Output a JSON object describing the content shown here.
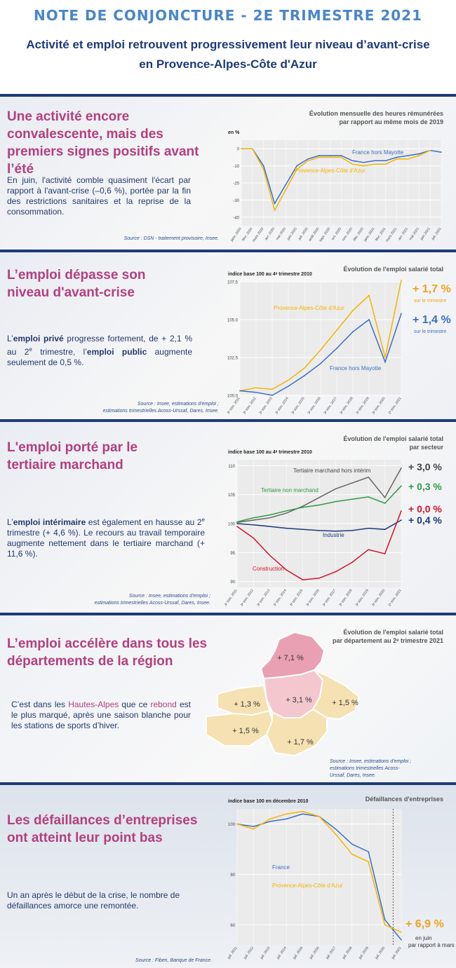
{
  "header": {
    "title": "NOTE DE CONJONCTURE - 2E TRIMESTRE 2021",
    "subtitle_line1": "Activité et emploi retrouvent progressivement leur niveau d’avant-crise",
    "subtitle_line2": "en Provence-Alpes-Côte d'Azur"
  },
  "section1": {
    "title": "Une activité encore convalescente, mais des premiers signes positifs avant l’été",
    "text": "En juin, l'activité comble quasiment l'écart par rapport à l'avant-crise (–0,6 %), portée par la fin des restrictions sanitaires et la reprise de la consommation.",
    "source": "Source : DSN - traitement provisoire, Insee.",
    "chart_title_1": "Évolution mensuelle des heures rémunérées",
    "chart_title_2": "par rapport au même mois de 2019",
    "unit": "en %"
  },
  "section2": {
    "title": "L’emploi dépasse son niveau d'avant-crise",
    "text_a": "L’",
    "text_b": "emploi privé",
    "text_c": " progresse fortement, de + 2,1 % au 2",
    "text_sup": "e",
    "text_d": " trimestre, l’",
    "text_e": "emploi public",
    "text_f": " augmente seulement de 0,5 %.",
    "source_1": "Source : Insee, estimations d'emploi ;",
    "source_2": "estimations trimestrielles Acoss-Urssaf, Dares, Insee.",
    "chart_title": "Évolution de l'emploi salarié total",
    "unit": "indice base 100 au 4ᵉ trimestre 2010",
    "delta_paca": "+ 1,7 %",
    "delta_france": "+ 1,4 %",
    "delta_sub": "sur le trimestre"
  },
  "section3": {
    "title": "L'emploi porté par le tertiaire marchand",
    "text_a": "L’",
    "text_b": "emploi intérimaire",
    "text_c": " est également en hausse au 2",
    "text_sup": "e",
    "text_d": " trimestre (+ 4,6 %). Le recours au travail temporaire augmente nettement dans le tertiaire marchand (+ 11,6 %).",
    "source_1": "Source : Insee, estimations d'emploi ;",
    "source_2": "estimations trimestrielles Acoss-Urssaf, Dares, Insee.",
    "chart_title_1": "Évolution de l'emploi salarié total",
    "chart_title_2": "par secteur",
    "unit": "indice base 100 au 4ᵉ trimestre 2010",
    "deltas": [
      "+ 3,0 %",
      "+ 0,3 %",
      "+ 0,0 %",
      "+ 0,4 %"
    ]
  },
  "section4": {
    "title": "L’emploi accélère dans tous les départements de la région",
    "text_a": "C’est dans les ",
    "text_b": "Hautes-Alpes",
    "text_c": " que ce ",
    "text_d": "rebond",
    "text_e": " est le plus marqué, après une saison blanche pour les stations de sports d’hiver.",
    "chart_title_1": "Évolution de l'emploi salarié total",
    "chart_title_2": "par département au 2ᵉ trimestre 2021",
    "map_labels": [
      "+ 7,1 %",
      "+ 3,1 %",
      "+ 1,3 %",
      "+ 1,5 %",
      "+ 1,5 %",
      "+ 1,7 %"
    ],
    "source_1": "Source : Insee, estimations d'emploi ;",
    "source_2": "estimations trimestrielles Acoss-",
    "source_3": "Urssaf, Dares, Insee."
  },
  "section5": {
    "title": "Les défaillances d’entreprises ont atteint leur point bas",
    "text": "Un an après le début de la crise, le nombre de défaillances amorce une remontée.",
    "source": "Source : Fiben, Banque de France.",
    "chart_title": "Défaillances d'entreprises",
    "unit": "indice base 100 en décembre 2010",
    "delta": "+ 6,9 %",
    "delta_sub_1": "en juin",
    "delta_sub_2": "par rapport à mars"
  },
  "chart_data": [
    {
      "type": "line",
      "title": "Évolution mensuelle des heures rémunérées par rapport au même mois de 2019",
      "ylabel": "en %",
      "x": [
        "janv. 2020",
        "févr. 2020",
        "mars 2020",
        "avr. 2020",
        "mai 2020",
        "juin 2020",
        "juil. 2020",
        "août 2020",
        "sept. 2020",
        "oct. 2020",
        "nov. 2020",
        "déc. 2020",
        "janv. 2021",
        "févr. 2021",
        "mars 2021",
        "avr. 2021",
        "mai 2021",
        "juin 2021",
        "juil. 2021"
      ],
      "ylim": [
        -45,
        5
      ],
      "yticks": [
        0,
        -10,
        -20,
        -30,
        -40
      ],
      "series": [
        {
          "name": "France hors Mayotte",
          "color": "#3a6fc4",
          "values": [
            0,
            0,
            -10,
            -32,
            -21,
            -10,
            -6,
            -4,
            -4,
            -4,
            -7,
            -8,
            -7,
            -7,
            -5,
            -4,
            -3,
            -1,
            -2
          ]
        },
        {
          "name": "Provence-Alpes-Côte d'Azur",
          "color": "#f2b500",
          "values": [
            0,
            0,
            -12,
            -36,
            -24,
            -12,
            -7,
            -5,
            -5,
            -5,
            -9,
            -10,
            -9,
            -9,
            -6,
            -6,
            -4,
            -1,
            null
          ]
        }
      ]
    },
    {
      "type": "line",
      "title": "Évolution de l'emploi salarié total",
      "ylabel": "indice base 100 au 4ᵉ trimestre 2010",
      "x": [
        "3ᵉ trim. 2011",
        "3ᵉ trim. 2012",
        "3ᵉ trim. 2013",
        "3ᵉ trim. 2014",
        "3ᵉ trim. 2015",
        "3ᵉ trim. 2016",
        "3ᵉ trim. 2017",
        "3ᵉ trim. 2018",
        "3ᵉ trim. 2019",
        "3ᵉ trim. 2020",
        "2ᵉ trim. 2021"
      ],
      "ylim": [
        100,
        107.5
      ],
      "yticks": [
        100.0,
        102.5,
        105.0,
        107.5
      ],
      "series": [
        {
          "name": "Provence-Alpes-Côte d'Azur",
          "color": "#f2b500",
          "values": [
            100.3,
            100.5,
            100.4,
            101.0,
            101.8,
            103.0,
            104.3,
            105.6,
            106.6,
            102.5,
            107.6
          ]
        },
        {
          "name": "France hors Mayotte",
          "color": "#3a6fc4",
          "values": [
            100.3,
            100.2,
            100.0,
            100.6,
            101.3,
            102.1,
            103.1,
            104.2,
            105.0,
            102.2,
            105.4
          ]
        }
      ]
    },
    {
      "type": "line",
      "title": "Évolution de l'emploi salarié total par secteur",
      "ylabel": "indice base 100 au 4ᵉ trimestre 2010",
      "x": [
        "3ᵉ trim. 2011",
        "3ᵉ trim. 2012",
        "3ᵉ trim. 2013",
        "3ᵉ trim. 2014",
        "3ᵉ trim. 2015",
        "3ᵉ trim. 2016",
        "3ᵉ trim. 2017",
        "3ᵉ trim. 2018",
        "3ᵉ trim. 2019",
        "3ᵉ trim. 2020",
        "2ᵉ trim. 2021"
      ],
      "ylim": [
        89,
        111
      ],
      "yticks": [
        90,
        95,
        100,
        105,
        110
      ],
      "series": [
        {
          "name": "Tertiaire marchand hors intérim",
          "color": "#666666",
          "values": [
            100.2,
            100.6,
            101.0,
            101.8,
            103.0,
            104.5,
            106.0,
            107.0,
            108.0,
            104.5,
            109.6
          ]
        },
        {
          "name": "Tertiaire non marchand",
          "color": "#2f9a4a",
          "values": [
            100.3,
            101.0,
            101.5,
            102.2,
            102.8,
            103.2,
            103.8,
            104.2,
            104.6,
            103.5,
            106.5
          ]
        },
        {
          "name": "Industrie",
          "color": "#1f3a78",
          "values": [
            100.0,
            99.8,
            99.5,
            99.2,
            99.0,
            98.8,
            98.7,
            98.8,
            99.2,
            99.0,
            100.6
          ]
        },
        {
          "name": "Construction",
          "color": "#d1132b",
          "values": [
            99.5,
            97.5,
            94.5,
            92.0,
            90.3,
            90.6,
            91.7,
            93.3,
            95.5,
            94.8,
            102.2
          ]
        }
      ]
    },
    {
      "type": "line",
      "title": "Défaillances d'entreprises",
      "ylabel": "indice base 100 en décembre 2010",
      "x": [
        "juil. 2011",
        "juil. 2012",
        "juil. 2013",
        "juil. 2014",
        "juil. 2015",
        "juil. 2016",
        "juil. 2017",
        "juil. 2018",
        "juil. 2019",
        "juil. 2020",
        "juil. 2021"
      ],
      "ylim": [
        52,
        106
      ],
      "yticks": [
        60,
        80,
        100
      ],
      "series": [
        {
          "name": "France",
          "color": "#3a6fc4",
          "values": [
            100,
            99,
            101,
            102,
            104,
            103,
            98,
            92,
            89,
            62,
            54
          ]
        },
        {
          "name": "Provence-Alpes-Côte d'Azur",
          "color": "#f2b500",
          "values": [
            100,
            98,
            102,
            104,
            105,
            103,
            96,
            88,
            85,
            60,
            57
          ]
        }
      ]
    }
  ]
}
